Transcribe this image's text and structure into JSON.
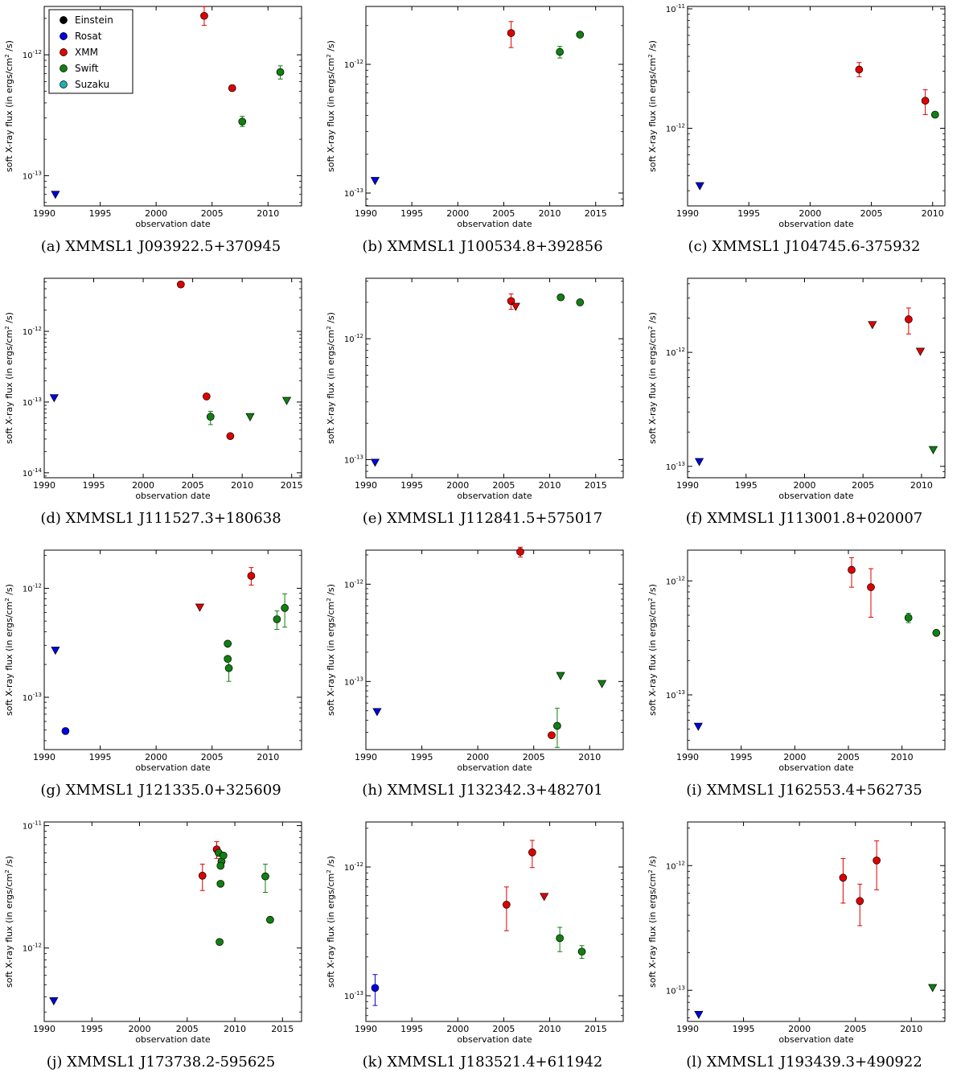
{
  "figure": {
    "colors": {
      "Einstein": "#000000",
      "Rosat": "#0000e0",
      "XMM": "#e00000",
      "Swift": "#108010",
      "Suzaku": "#20b0b0"
    },
    "legend": [
      {
        "label": "Einstein",
        "color": "#000000"
      },
      {
        "label": "Rosat",
        "color": "#0000e0"
      },
      {
        "label": "XMM",
        "color": "#e00000"
      },
      {
        "label": "Swift",
        "color": "#108010"
      },
      {
        "label": "Suzaku",
        "color": "#20b0b0"
      }
    ]
  },
  "chart_data": [
    {
      "type": "scatter",
      "caption": "(a) XMMSL1 J093922.5+370945",
      "xlabel": "observation date",
      "ylabel_main": "soft X-ray flux (in ergs/cm",
      "ylabel_sup": "2",
      "ylabel_tail": " /s)",
      "xlim": [
        1990,
        2013
      ],
      "xticks": [
        1990,
        1995,
        2000,
        2005,
        2010
      ],
      "ylim_log": [
        -13.25,
        -11.6
      ],
      "yticks": [
        {
          "exp": "-13",
          "val": -13
        },
        {
          "exp": "-12",
          "val": -12
        }
      ],
      "legend": true,
      "points": [
        {
          "x": 1991.0,
          "y": 7e-14,
          "src": "Rosat",
          "kind": "upper_limit"
        },
        {
          "x": 2004.3,
          "y": 2.1e-12,
          "src": "XMM",
          "kind": "detection",
          "lo": 1.75e-12,
          "hi": 2.5e-12
        },
        {
          "x": 2006.8,
          "y": 5.3e-13,
          "src": "XMM",
          "kind": "detection"
        },
        {
          "x": 2007.7,
          "y": 2.8e-13,
          "src": "Swift",
          "kind": "detection",
          "lo": 2.55e-13,
          "hi": 3.1e-13
        },
        {
          "x": 2011.1,
          "y": 7.2e-13,
          "src": "Swift",
          "kind": "detection",
          "lo": 6.3e-13,
          "hi": 8.1e-13
        }
      ]
    },
    {
      "type": "scatter",
      "caption": "(b) XMMSL1 J100534.8+392856",
      "xlabel": "observation date",
      "ylabel_main": "soft X-ray flux (in ergs/cm",
      "ylabel_sup": "2",
      "ylabel_tail": " /s)",
      "xlim": [
        1990,
        2018
      ],
      "xticks": [
        1990,
        1995,
        2000,
        2005,
        2010,
        2015
      ],
      "ylim_log": [
        -13.1,
        -11.55
      ],
      "yticks": [
        {
          "exp": "-13",
          "val": -13
        },
        {
          "exp": "-12",
          "val": -12
        }
      ],
      "legend": false,
      "points": [
        {
          "x": 1991.0,
          "y": 1.25e-13,
          "src": "Rosat",
          "kind": "upper_limit"
        },
        {
          "x": 2005.8,
          "y": 1.75e-12,
          "src": "XMM",
          "kind": "detection",
          "lo": 1.35e-12,
          "hi": 2.15e-12
        },
        {
          "x": 2011.1,
          "y": 1.25e-12,
          "src": "Swift",
          "kind": "detection",
          "lo": 1.12e-12,
          "hi": 1.38e-12
        },
        {
          "x": 2013.3,
          "y": 1.7e-12,
          "src": "Swift",
          "kind": "detection"
        }
      ]
    },
    {
      "type": "scatter",
      "caption": "(c) XMMSL1 J104745.6-375932",
      "xlabel": "observation date",
      "ylabel_main": "soft X-ray flux (in ergs/cm",
      "ylabel_sup": "2",
      "ylabel_tail": " /s)",
      "xlim": [
        1990,
        2011
      ],
      "xticks": [
        1990,
        1995,
        2000,
        2005,
        2010
      ],
      "ylim_log": [
        -12.65,
        -10.98
      ],
      "yticks": [
        {
          "exp": "-12",
          "val": -12
        },
        {
          "exp": "-11",
          "val": -11
        }
      ],
      "legend": false,
      "points": [
        {
          "x": 1991.0,
          "y": 3.3e-13,
          "src": "Rosat",
          "kind": "upper_limit"
        },
        {
          "x": 2004.0,
          "y": 3.1e-12,
          "src": "XMM",
          "kind": "detection",
          "lo": 2.7e-12,
          "hi": 3.55e-12
        },
        {
          "x": 2009.4,
          "y": 1.7e-12,
          "src": "XMM",
          "kind": "detection",
          "lo": 1.3e-12,
          "hi": 2.1e-12
        },
        {
          "x": 2010.2,
          "y": 1.3e-12,
          "src": "Swift",
          "kind": "detection"
        }
      ]
    },
    {
      "type": "scatter",
      "caption": "(d) XMMSL1 J111527.3+180638",
      "xlabel": "observation date",
      "ylabel_main": "soft X-ray flux (in ergs/cm",
      "ylabel_sup": "2",
      "ylabel_tail": " /s)",
      "xlim": [
        1990,
        2016
      ],
      "xticks": [
        1990,
        1995,
        2000,
        2005,
        2010,
        2015
      ],
      "ylim_log": [
        -14.07,
        -11.25
      ],
      "yticks": [
        {
          "exp": "-14",
          "val": -14
        },
        {
          "exp": "-13",
          "val": -13
        },
        {
          "exp": "-12",
          "val": -12
        }
      ],
      "legend": false,
      "points": [
        {
          "x": 1991.0,
          "y": 1.15e-13,
          "src": "Rosat",
          "kind": "upper_limit"
        },
        {
          "x": 2003.8,
          "y": 4.6e-12,
          "src": "XMM",
          "kind": "detection"
        },
        {
          "x": 2006.4,
          "y": 1.2e-13,
          "src": "XMM",
          "kind": "detection"
        },
        {
          "x": 2006.8,
          "y": 6.2e-14,
          "src": "Swift",
          "kind": "detection",
          "lo": 4.8e-14,
          "hi": 7.4e-14
        },
        {
          "x": 2008.8,
          "y": 3.3e-14,
          "src": "XMM",
          "kind": "detection"
        },
        {
          "x": 2010.8,
          "y": 6.2e-14,
          "src": "Swift",
          "kind": "upper_limit"
        },
        {
          "x": 2014.5,
          "y": 1.05e-13,
          "src": "Swift",
          "kind": "upper_limit"
        }
      ]
    },
    {
      "type": "scatter",
      "caption": "(e) XMMSL1 J112841.5+575017",
      "xlabel": "observation date",
      "ylabel_main": "soft X-ray flux (in ergs/cm",
      "ylabel_sup": "2",
      "ylabel_tail": " /s)",
      "xlim": [
        1990,
        2018
      ],
      "xticks": [
        1990,
        1995,
        2000,
        2005,
        2010,
        2015
      ],
      "ylim_log": [
        -13.15,
        -11.5
      ],
      "yticks": [
        {
          "exp": "-13",
          "val": -13
        },
        {
          "exp": "-12",
          "val": -12
        }
      ],
      "legend": false,
      "points": [
        {
          "x": 1991.0,
          "y": 9.5e-14,
          "src": "Rosat",
          "kind": "upper_limit"
        },
        {
          "x": 2005.8,
          "y": 2.05e-12,
          "src": "XMM",
          "kind": "detection",
          "lo": 1.75e-12,
          "hi": 2.35e-12
        },
        {
          "x": 2006.3,
          "y": 1.85e-12,
          "src": "XMM",
          "kind": "upper_limit"
        },
        {
          "x": 2011.2,
          "y": 2.2e-12,
          "src": "Swift",
          "kind": "detection"
        },
        {
          "x": 2013.3,
          "y": 2e-12,
          "src": "Swift",
          "kind": "detection"
        }
      ]
    },
    {
      "type": "scatter",
      "caption": "(f) XMMSL1 J113001.8+020007",
      "xlabel": "observation date",
      "ylabel_main": "soft X-ray flux (in ergs/cm",
      "ylabel_sup": "2",
      "ylabel_tail": " /s)",
      "xlim": [
        1990,
        2012
      ],
      "xticks": [
        1990,
        1995,
        2000,
        2005,
        2010
      ],
      "ylim_log": [
        -13.1,
        -11.35
      ],
      "yticks": [
        {
          "exp": "-13",
          "val": -13
        },
        {
          "exp": "-12",
          "val": -12
        }
      ],
      "legend": false,
      "points": [
        {
          "x": 1991.0,
          "y": 1.1e-13,
          "src": "Rosat",
          "kind": "upper_limit"
        },
        {
          "x": 2005.8,
          "y": 1.75e-12,
          "src": "XMM",
          "kind": "upper_limit"
        },
        {
          "x": 2008.9,
          "y": 1.95e-12,
          "src": "XMM",
          "kind": "detection",
          "lo": 1.45e-12,
          "hi": 2.45e-12
        },
        {
          "x": 2009.9,
          "y": 1.02e-12,
          "src": "XMM",
          "kind": "upper_limit"
        },
        {
          "x": 2011.0,
          "y": 1.4e-13,
          "src": "Swift",
          "kind": "upper_limit"
        }
      ]
    },
    {
      "type": "scatter",
      "caption": "(g) XMMSL1 J121335.0+325609",
      "xlabel": "observation date",
      "ylabel_main": "soft X-ray flux (in ergs/cm",
      "ylabel_sup": "2",
      "ylabel_tail": " /s)",
      "xlim": [
        1990,
        2013
      ],
      "xticks": [
        1990,
        1995,
        2000,
        2005,
        2010
      ],
      "ylim_log": [
        -13.48,
        -11.65
      ],
      "yticks": [
        {
          "exp": "-13",
          "val": -13
        },
        {
          "exp": "-12",
          "val": -12
        }
      ],
      "legend": false,
      "points": [
        {
          "x": 1991.0,
          "y": 2.7e-13,
          "src": "Rosat",
          "kind": "upper_limit"
        },
        {
          "x": 1991.9,
          "y": 4.9e-14,
          "src": "Rosat",
          "kind": "detection"
        },
        {
          "x": 2003.9,
          "y": 6.7e-13,
          "src": "XMM",
          "kind": "upper_limit"
        },
        {
          "x": 2006.4,
          "y": 3.1e-13,
          "src": "Swift",
          "kind": "detection"
        },
        {
          "x": 2006.4,
          "y": 2.25e-13,
          "src": "Swift",
          "kind": "detection"
        },
        {
          "x": 2006.5,
          "y": 1.85e-13,
          "src": "Swift",
          "kind": "detection",
          "lo": 1.4e-13,
          "hi": 2.3e-13
        },
        {
          "x": 2008.5,
          "y": 1.3e-12,
          "src": "XMM",
          "kind": "detection",
          "lo": 1.07e-12,
          "hi": 1.55e-12
        },
        {
          "x": 2010.8,
          "y": 5.2e-13,
          "src": "Swift",
          "kind": "detection",
          "lo": 4.2e-13,
          "hi": 6.2e-13
        },
        {
          "x": 2011.5,
          "y": 6.6e-13,
          "src": "Swift",
          "kind": "detection",
          "lo": 4.4e-13,
          "hi": 8.9e-13
        }
      ]
    },
    {
      "type": "scatter",
      "caption": "(h) XMMSL1 J132342.3+482701",
      "xlabel": "observation date",
      "ylabel_main": "soft X-ray flux (in ergs/cm",
      "ylabel_sup": "2",
      "ylabel_tail": " /s)",
      "xlim": [
        1990,
        2013
      ],
      "xticks": [
        1990,
        1995,
        2000,
        2005,
        2010
      ],
      "ylim_log": [
        -13.7,
        -11.65
      ],
      "yticks": [
        {
          "exp": "-13",
          "val": -13
        },
        {
          "exp": "-12",
          "val": -12
        }
      ],
      "legend": false,
      "points": [
        {
          "x": 1991.0,
          "y": 4.9e-14,
          "src": "Rosat",
          "kind": "upper_limit"
        },
        {
          "x": 2003.8,
          "y": 2.15e-12,
          "src": "XMM",
          "kind": "detection",
          "lo": 1.9e-12,
          "hi": 2.4e-12
        },
        {
          "x": 2006.6,
          "y": 2.8e-14,
          "src": "XMM",
          "kind": "detection"
        },
        {
          "x": 2007.1,
          "y": 3.5e-14,
          "src": "Swift",
          "kind": "detection",
          "lo": 2.1e-14,
          "hi": 5.3e-14
        },
        {
          "x": 2007.4,
          "y": 1.15e-13,
          "src": "Swift",
          "kind": "upper_limit"
        },
        {
          "x": 2011.1,
          "y": 9.5e-14,
          "src": "Swift",
          "kind": "upper_limit"
        }
      ]
    },
    {
      "type": "scatter",
      "caption": "(i) XMMSL1 J162553.4+562735",
      "xlabel": "observation date",
      "ylabel_main": "soft X-ray flux (in ergs/cm",
      "ylabel_sup": "2",
      "ylabel_tail": " /s)",
      "xlim": [
        1990,
        2014
      ],
      "xticks": [
        1990,
        1995,
        2000,
        2005,
        2010
      ],
      "ylim_log": [
        -13.48,
        -11.73
      ],
      "yticks": [
        {
          "exp": "-13",
          "val": -13
        },
        {
          "exp": "-12",
          "val": -12
        }
      ],
      "legend": false,
      "points": [
        {
          "x": 1991.0,
          "y": 5.3e-14,
          "src": "Rosat",
          "kind": "upper_limit"
        },
        {
          "x": 2005.3,
          "y": 1.25e-12,
          "src": "XMM",
          "kind": "detection",
          "lo": 8.8e-13,
          "hi": 1.6e-12
        },
        {
          "x": 2007.1,
          "y": 8.8e-13,
          "src": "XMM",
          "kind": "detection",
          "lo": 4.8e-13,
          "hi": 1.28e-12
        },
        {
          "x": 2010.6,
          "y": 4.75e-13,
          "src": "Swift",
          "kind": "detection",
          "lo": 4.3e-13,
          "hi": 5.2e-13
        },
        {
          "x": 2013.2,
          "y": 3.5e-13,
          "src": "Swift",
          "kind": "detection"
        }
      ]
    },
    {
      "type": "scatter",
      "caption": "(j) XMMSL1 J173738.2-595625",
      "xlabel": "observation date",
      "ylabel_main": "soft X-ray flux (in ergs/cm",
      "ylabel_sup": "2",
      "ylabel_tail": " /s)",
      "xlim": [
        1990,
        2017
      ],
      "xticks": [
        1990,
        1995,
        2000,
        2005,
        2010,
        2015
      ],
      "ylim_log": [
        -12.6,
        -10.97
      ],
      "yticks": [
        {
          "exp": "-12",
          "val": -12
        },
        {
          "exp": "-11",
          "val": -11
        }
      ],
      "legend": false,
      "points": [
        {
          "x": 1991.0,
          "y": 3.7e-13,
          "src": "Rosat",
          "kind": "upper_limit"
        },
        {
          "x": 2006.6,
          "y": 3.9e-12,
          "src": "XMM",
          "kind": "detection",
          "lo": 2.95e-12,
          "hi": 4.85e-12
        },
        {
          "x": 2008.1,
          "y": 6.4e-12,
          "src": "XMM",
          "kind": "detection",
          "lo": 5.4e-12,
          "hi": 7.4e-12
        },
        {
          "x": 2008.3,
          "y": 6e-12,
          "src": "Swift",
          "kind": "detection"
        },
        {
          "x": 2008.6,
          "y": 5.1e-12,
          "src": "Swift",
          "kind": "detection"
        },
        {
          "x": 2008.5,
          "y": 4.7e-12,
          "src": "Swift",
          "kind": "detection"
        },
        {
          "x": 2008.8,
          "y": 5.7e-12,
          "src": "Swift",
          "kind": "detection"
        },
        {
          "x": 2008.5,
          "y": 3.35e-12,
          "src": "Swift",
          "kind": "detection"
        },
        {
          "x": 2008.4,
          "y": 1.12e-12,
          "src": "Swift",
          "kind": "detection"
        },
        {
          "x": 2013.2,
          "y": 3.85e-12,
          "src": "Swift",
          "kind": "detection",
          "lo": 2.85e-12,
          "hi": 4.85e-12
        },
        {
          "x": 2013.7,
          "y": 1.7e-12,
          "src": "Swift",
          "kind": "detection"
        }
      ]
    },
    {
      "type": "scatter",
      "caption": "(k) XMMSL1 J183521.4+611942",
      "xlabel": "observation date",
      "ylabel_main": "soft X-ray flux (in ergs/cm",
      "ylabel_sup": "2",
      "ylabel_tail": " /s)",
      "xlim": [
        1990,
        2018
      ],
      "xticks": [
        1990,
        1995,
        2000,
        2005,
        2010,
        2015
      ],
      "ylim_log": [
        -13.2,
        -11.65
      ],
      "yticks": [
        {
          "exp": "-13",
          "val": -13
        },
        {
          "exp": "-12",
          "val": -12
        }
      ],
      "legend": false,
      "points": [
        {
          "x": 1991.0,
          "y": 1.15e-13,
          "src": "Rosat",
          "kind": "detection",
          "lo": 8.4e-14,
          "hi": 1.46e-13
        },
        {
          "x": 2005.3,
          "y": 5.1e-13,
          "src": "XMM",
          "kind": "detection",
          "lo": 3.2e-13,
          "hi": 7e-13
        },
        {
          "x": 2008.1,
          "y": 1.3e-12,
          "src": "XMM",
          "kind": "detection",
          "lo": 9.9e-13,
          "hi": 1.61e-12
        },
        {
          "x": 2009.4,
          "y": 5.9e-13,
          "src": "XMM",
          "kind": "upper_limit"
        },
        {
          "x": 2011.1,
          "y": 2.8e-13,
          "src": "Swift",
          "kind": "detection",
          "lo": 2.2e-13,
          "hi": 3.4e-13
        },
        {
          "x": 2013.5,
          "y": 2.2e-13,
          "src": "Swift",
          "kind": "detection",
          "lo": 1.95e-13,
          "hi": 2.45e-13
        }
      ]
    },
    {
      "type": "scatter",
      "caption": "(l) XMMSL1 J193439.3+490922",
      "xlabel": "observation date",
      "ylabel_main": "soft X-ray flux (in ergs/cm",
      "ylabel_sup": "2",
      "ylabel_tail": " /s)",
      "xlim": [
        1990,
        2013
      ],
      "xticks": [
        1990,
        1995,
        2000,
        2005,
        2010
      ],
      "ylim_log": [
        -13.25,
        -11.65
      ],
      "yticks": [
        {
          "exp": "-13",
          "val": -13
        },
        {
          "exp": "-12",
          "val": -12
        }
      ],
      "legend": false,
      "points": [
        {
          "x": 1991.0,
          "y": 6.4e-14,
          "src": "Rosat",
          "kind": "upper_limit"
        },
        {
          "x": 2003.9,
          "y": 8e-13,
          "src": "XMM",
          "kind": "detection",
          "lo": 5e-13,
          "hi": 1.14e-12
        },
        {
          "x": 2005.4,
          "y": 5.2e-13,
          "src": "XMM",
          "kind": "detection",
          "lo": 3.3e-13,
          "hi": 7.1e-13
        },
        {
          "x": 2006.9,
          "y": 1.1e-12,
          "src": "XMM",
          "kind": "detection",
          "lo": 6.4e-13,
          "hi": 1.58e-12
        },
        {
          "x": 2011.9,
          "y": 1.05e-13,
          "src": "Swift",
          "kind": "upper_limit"
        }
      ]
    }
  ]
}
